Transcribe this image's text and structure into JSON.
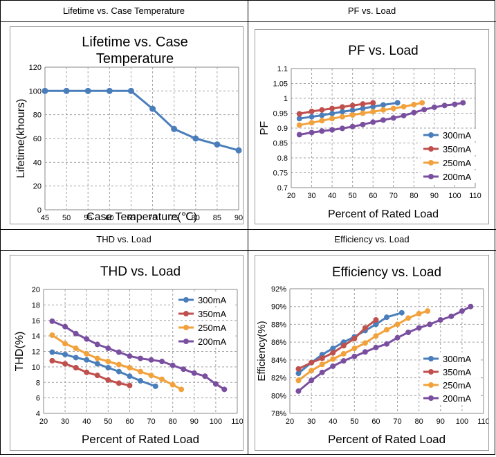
{
  "headers": {
    "top_left": "Lifetime vs. Case Temperature",
    "top_right": "PF vs. Load",
    "bottom_left": "THD vs. Load",
    "bottom_right": "Efficiency vs. Load"
  },
  "colors": {
    "blue": "#4a7ebb",
    "red": "#c0504d",
    "orange": "#f2a23c",
    "purple": "#7a4fa0",
    "grid": "#a0a0a0"
  },
  "chart_data": [
    {
      "type": "line",
      "title": "Lifetime vs. Case Temperature",
      "title_lines": [
        "Lifetime vs. Case",
        "Temperature"
      ],
      "xlabel": "Case Temperature(℃)",
      "ylabel": "Lifetime(khours)",
      "xlim": [
        45,
        90
      ],
      "ylim": [
        0,
        120
      ],
      "xticks": [
        45,
        50,
        55,
        60,
        65,
        70,
        75,
        80,
        85,
        90
      ],
      "yticks": [
        0,
        20,
        40,
        60,
        80,
        100,
        120
      ],
      "legend": [],
      "series": [
        {
          "name": "Lifetime",
          "color": "#4a7ebb",
          "x": [
            45,
            50,
            55,
            60,
            65,
            70,
            75,
            80,
            85,
            90
          ],
          "y": [
            100,
            100,
            100,
            100,
            100,
            85,
            68,
            60,
            55,
            50
          ]
        }
      ]
    },
    {
      "type": "line",
      "title": "PF vs. Load",
      "title_lines": [
        "PF vs. Load"
      ],
      "xlabel": "Percent of Rated Load",
      "ylabel": "PF",
      "xlim": [
        20,
        110
      ],
      "ylim": [
        0.7,
        1.1
      ],
      "xticks": [
        20,
        30,
        40,
        50,
        60,
        70,
        80,
        90,
        100,
        110
      ],
      "yticks": [
        0.7,
        0.75,
        0.8,
        0.85,
        0.9,
        0.95,
        1,
        1.05,
        1.1
      ],
      "legend": [
        "300mA",
        "350mA",
        "250mA",
        "200mA"
      ],
      "series": [
        {
          "name": "300mA",
          "color": "#4a7ebb",
          "x": [
            24,
            30,
            35,
            40,
            45,
            50,
            55,
            60,
            65,
            72
          ],
          "y": [
            0.932,
            0.938,
            0.943,
            0.949,
            0.955,
            0.96,
            0.966,
            0.972,
            0.978,
            0.985
          ]
        },
        {
          "name": "350mA",
          "color": "#c0504d",
          "x": [
            24,
            30,
            35,
            40,
            45,
            50,
            55,
            60
          ],
          "y": [
            0.948,
            0.956,
            0.961,
            0.966,
            0.971,
            0.976,
            0.981,
            0.985
          ]
        },
        {
          "name": "250mA",
          "color": "#f2a23c",
          "x": [
            24,
            30,
            35,
            40,
            45,
            50,
            55,
            60,
            65,
            70,
            75,
            80,
            84
          ],
          "y": [
            0.91,
            0.918,
            0.925,
            0.932,
            0.938,
            0.944,
            0.95,
            0.955,
            0.961,
            0.966,
            0.972,
            0.979,
            0.985
          ]
        },
        {
          "name": "200mA",
          "color": "#7a4fa0",
          "x": [
            24,
            30,
            35,
            40,
            45,
            50,
            55,
            60,
            65,
            70,
            75,
            80,
            85,
            90,
            95,
            100,
            104
          ],
          "y": [
            0.878,
            0.885,
            0.89,
            0.894,
            0.899,
            0.905,
            0.912,
            0.92,
            0.927,
            0.934,
            0.942,
            0.952,
            0.962,
            0.97,
            0.976,
            0.98,
            0.985
          ]
        }
      ]
    },
    {
      "type": "line",
      "title": "THD vs. Load",
      "title_lines": [
        "THD vs. Load"
      ],
      "xlabel": "Percent of Rated Load",
      "ylabel": "THD(%)",
      "xlim": [
        20,
        110
      ],
      "ylim": [
        4,
        20
      ],
      "xticks": [
        20,
        30,
        40,
        50,
        60,
        70,
        80,
        90,
        100,
        110
      ],
      "yticks": [
        4,
        6,
        8,
        10,
        12,
        14,
        16,
        18,
        20
      ],
      "legend": [
        "300mA",
        "350mA",
        "250mA",
        "200mA"
      ],
      "series": [
        {
          "name": "300mA",
          "color": "#4a7ebb",
          "x": [
            24,
            30,
            35,
            40,
            45,
            50,
            55,
            60,
            65,
            72
          ],
          "y": [
            11.9,
            11.6,
            11.2,
            10.9,
            10.4,
            9.9,
            9.4,
            8.8,
            8.2,
            7.5
          ]
        },
        {
          "name": "350mA",
          "color": "#c0504d",
          "x": [
            24,
            30,
            35,
            40,
            45,
            50,
            55,
            60
          ],
          "y": [
            10.8,
            10.4,
            9.9,
            9.3,
            8.9,
            8.3,
            7.9,
            7.6
          ]
        },
        {
          "name": "250mA",
          "color": "#f2a23c",
          "x": [
            24,
            30,
            35,
            40,
            45,
            50,
            55,
            60,
            65,
            70,
            75,
            80,
            84
          ],
          "y": [
            14.1,
            13.0,
            12.4,
            11.7,
            11.1,
            10.7,
            10.3,
            9.9,
            9.4,
            8.9,
            8.4,
            7.7,
            7.1
          ]
        },
        {
          "name": "200mA",
          "color": "#7a4fa0",
          "x": [
            24,
            30,
            35,
            40,
            45,
            50,
            55,
            60,
            65,
            70,
            75,
            80,
            85,
            90,
            95,
            100,
            104
          ],
          "y": [
            15.9,
            15.2,
            14.3,
            13.6,
            12.9,
            12.4,
            11.9,
            11.4,
            11.1,
            10.9,
            10.7,
            10.2,
            9.7,
            9.2,
            8.8,
            7.8,
            7.1
          ]
        }
      ]
    },
    {
      "type": "line",
      "title": "Efficiency vs. Load",
      "title_lines": [
        "Efficiency vs. Load"
      ],
      "xlabel": "Percent of Rated Load",
      "ylabel": "Efficiency(%)",
      "xlim": [
        20,
        110
      ],
      "ylim": [
        78,
        92
      ],
      "xticks": [
        20,
        30,
        40,
        50,
        60,
        70,
        80,
        90,
        100,
        110
      ],
      "yticks": [
        78,
        80,
        82,
        84,
        86,
        88,
        90,
        92
      ],
      "ytick_suffix": "%",
      "legend": [
        "300mA",
        "350mA",
        "250mA",
        "200mA"
      ],
      "series": [
        {
          "name": "300mA",
          "color": "#4a7ebb",
          "x": [
            24,
            30,
            35,
            40,
            45,
            50,
            55,
            60,
            65,
            72
          ],
          "y": [
            82.5,
            83.7,
            84.6,
            85.3,
            86.0,
            86.6,
            87.3,
            88.0,
            88.8,
            89.3
          ]
        },
        {
          "name": "350mA",
          "color": "#c0504d",
          "x": [
            24,
            30,
            35,
            40,
            45,
            50,
            55,
            60
          ],
          "y": [
            83.0,
            83.7,
            84.2,
            84.8,
            85.6,
            86.4,
            87.6,
            88.5
          ]
        },
        {
          "name": "250mA",
          "color": "#f2a23c",
          "x": [
            24,
            30,
            35,
            40,
            45,
            50,
            55,
            60,
            65,
            70,
            75,
            80,
            84
          ],
          "y": [
            81.7,
            82.8,
            83.5,
            84.1,
            84.7,
            85.3,
            85.9,
            86.7,
            87.4,
            88.0,
            88.7,
            89.2,
            89.5
          ]
        },
        {
          "name": "200mA",
          "color": "#7a4fa0",
          "x": [
            24,
            30,
            35,
            40,
            45,
            50,
            55,
            60,
            65,
            70,
            75,
            80,
            85,
            90,
            95,
            100,
            104
          ],
          "y": [
            80.5,
            81.7,
            82.6,
            83.3,
            83.9,
            84.4,
            84.9,
            85.4,
            85.8,
            86.5,
            87.1,
            87.6,
            88.0,
            88.5,
            88.9,
            89.5,
            90.0
          ]
        }
      ]
    }
  ]
}
